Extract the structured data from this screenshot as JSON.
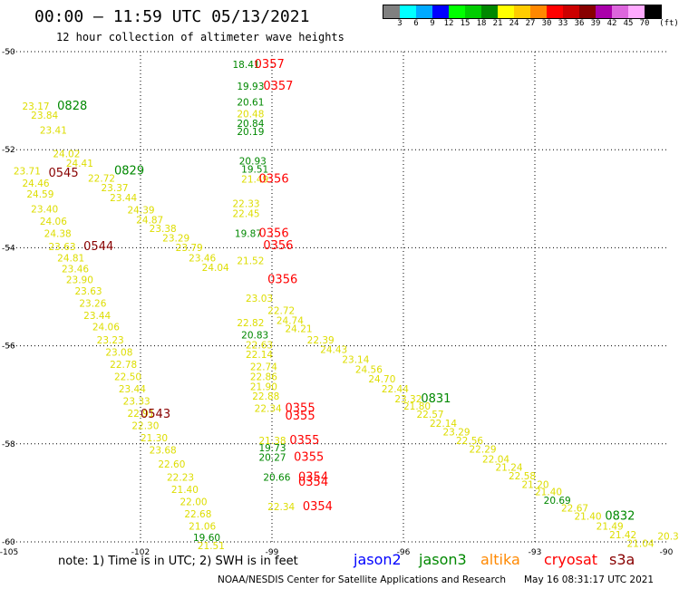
{
  "header": {
    "title": "00:00 – 11:59 UTC 05/13/2021",
    "subtitle": "12 hour collection of altimeter wave heights"
  },
  "colorbar": {
    "unit_label": "(ft)",
    "labels": [
      "3",
      "6",
      "9",
      "12",
      "15",
      "18",
      "21",
      "24",
      "27",
      "30",
      "33",
      "36",
      "39",
      "42",
      "45",
      "70"
    ],
    "colors": [
      "#808080",
      "#00ffff",
      "#00aaff",
      "#0000ff",
      "#00ff00",
      "#00cc00",
      "#008800",
      "#ffff00",
      "#ffcc00",
      "#ff8800",
      "#ff0000",
      "#cc0000",
      "#880000",
      "#aa00aa",
      "#dd66dd",
      "#ffaaff",
      "#000000"
    ]
  },
  "footer": {
    "note": "note:  1) Time is in UTC;  2) SWH is in feet",
    "missions": [
      {
        "name": "jason2",
        "color": "#0000ff"
      },
      {
        "name": "jason3",
        "color": "#008800"
      },
      {
        "name": "altika",
        "color": "#ff8800"
      },
      {
        "name": "cryosat",
        "color": "#ff0000"
      },
      {
        "name": "s3a",
        "color": "#880000"
      }
    ],
    "credit": "NOAA/NESDIS Center for Satellite Applications and Research",
    "timestamp": "May 16 08:31:17 UTC 2021"
  },
  "chart_data": {
    "type": "scatter",
    "title": "00:00 – 11:59 UTC 05/13/2021",
    "subtitle": "12 hour collection of altimeter wave heights",
    "xlabel": "",
    "ylabel": "",
    "xlim": [
      -105,
      -90
    ],
    "ylim": [
      -60,
      -50
    ],
    "x_ticks": [
      -105,
      -102,
      -99,
      -96,
      -93,
      -90
    ],
    "y_ticks": [
      -50,
      -52,
      -54,
      -56,
      -58,
      -60
    ],
    "grid": true,
    "units": "ft",
    "labels": [
      {
        "text": "18.41",
        "lon": -99.9,
        "lat": -50.33,
        "color": "#008800"
      },
      {
        "text": "0357",
        "lon": -99.4,
        "lat": -50.33,
        "color": "#ff0000"
      },
      {
        "text": "19.93",
        "lon": -99.8,
        "lat": -50.78,
        "color": "#008800"
      },
      {
        "text": "0357",
        "lon": -99.2,
        "lat": -50.78,
        "color": "#ff0000"
      },
      {
        "text": "20.61",
        "lon": -99.8,
        "lat": -51.1,
        "color": "#008800"
      },
      {
        "text": "20.48",
        "lon": -99.8,
        "lat": -51.34,
        "color": "#dddd00"
      },
      {
        "text": "20.84",
        "lon": -99.8,
        "lat": -51.53,
        "color": "#008800"
      },
      {
        "text": "20.19",
        "lon": -99.8,
        "lat": -51.7,
        "color": "#008800"
      },
      {
        "text": "20.93",
        "lon": -99.75,
        "lat": -52.3,
        "color": "#008800"
      },
      {
        "text": "19.51",
        "lon": -99.7,
        "lat": -52.47,
        "color": "#008800"
      },
      {
        "text": "21.49",
        "lon": -99.7,
        "lat": -52.67,
        "color": "#dddd00"
      },
      {
        "text": "0356",
        "lon": -99.3,
        "lat": -52.67,
        "color": "#ff0000"
      },
      {
        "text": "23.17",
        "lon": -104.7,
        "lat": -51.18,
        "color": "#dddd00"
      },
      {
        "text": "23.84",
        "lon": -104.5,
        "lat": -51.37,
        "color": "#dddd00"
      },
      {
        "text": "23.41",
        "lon": -104.3,
        "lat": -51.67,
        "color": "#dddd00"
      },
      {
        "text": "24.02",
        "lon": -104.0,
        "lat": -52.15,
        "color": "#dddd00"
      },
      {
        "text": "24.41",
        "lon": -103.7,
        "lat": -52.35,
        "color": "#dddd00"
      },
      {
        "text": "23.71",
        "lon": -104.9,
        "lat": -52.5,
        "color": "#dddd00"
      },
      {
        "text": "24.46",
        "lon": -104.7,
        "lat": -52.75,
        "color": "#dddd00"
      },
      {
        "text": "24.59",
        "lon": -104.6,
        "lat": -52.98,
        "color": "#dddd00"
      },
      {
        "text": "23.40",
        "lon": -104.5,
        "lat": -53.28,
        "color": "#dddd00"
      },
      {
        "text": "24.06",
        "lon": -104.3,
        "lat": -53.53,
        "color": "#dddd00"
      },
      {
        "text": "24.38",
        "lon": -104.2,
        "lat": -53.78,
        "color": "#dddd00"
      },
      {
        "text": "23.63",
        "lon": -104.1,
        "lat": -54.05,
        "color": "#dddd00"
      },
      {
        "text": "24.81",
        "lon": -103.9,
        "lat": -54.28,
        "color": "#dddd00"
      },
      {
        "text": "23.46",
        "lon": -103.8,
        "lat": -54.5,
        "color": "#dddd00"
      },
      {
        "text": "23.90",
        "lon": -103.7,
        "lat": -54.72,
        "color": "#dddd00"
      },
      {
        "text": "23.63",
        "lon": -103.5,
        "lat": -54.95,
        "color": "#dddd00"
      },
      {
        "text": "23.26",
        "lon": -103.4,
        "lat": -55.2,
        "color": "#dddd00"
      },
      {
        "text": "23.44",
        "lon": -103.3,
        "lat": -55.45,
        "color": "#dddd00"
      },
      {
        "text": "24.06",
        "lon": -103.1,
        "lat": -55.68,
        "color": "#dddd00"
      },
      {
        "text": "23.23",
        "lon": -103.0,
        "lat": -55.95,
        "color": "#dddd00"
      },
      {
        "text": "23.08",
        "lon": -102.8,
        "lat": -56.2,
        "color": "#dddd00"
      },
      {
        "text": "22.78",
        "lon": -102.7,
        "lat": -56.45,
        "color": "#dddd00"
      },
      {
        "text": "22.50",
        "lon": -102.6,
        "lat": -56.7,
        "color": "#dddd00"
      },
      {
        "text": "23.44",
        "lon": -102.5,
        "lat": -56.95,
        "color": "#dddd00"
      },
      {
        "text": "23.33",
        "lon": -102.4,
        "lat": -57.2,
        "color": "#dddd00"
      },
      {
        "text": "22.91",
        "lon": -102.3,
        "lat": -57.45,
        "color": "#dddd00"
      },
      {
        "text": "22.30",
        "lon": -102.2,
        "lat": -57.7,
        "color": "#dddd00"
      },
      {
        "text": "21.30",
        "lon": -102.0,
        "lat": -57.95,
        "color": "#dddd00"
      },
      {
        "text": "23.68",
        "lon": -101.8,
        "lat": -58.2,
        "color": "#dddd00"
      },
      {
        "text": "22.60",
        "lon": -101.6,
        "lat": -58.48,
        "color": "#dddd00"
      },
      {
        "text": "22.23",
        "lon": -101.4,
        "lat": -58.75,
        "color": "#dddd00"
      },
      {
        "text": "21.40",
        "lon": -101.3,
        "lat": -59.0,
        "color": "#dddd00"
      },
      {
        "text": "22.00",
        "lon": -101.1,
        "lat": -59.25,
        "color": "#dddd00"
      },
      {
        "text": "22.68",
        "lon": -101.0,
        "lat": -59.5,
        "color": "#dddd00"
      },
      {
        "text": "21.06",
        "lon": -100.9,
        "lat": -59.75,
        "color": "#dddd00"
      },
      {
        "text": "19.60",
        "lon": -100.8,
        "lat": -59.98,
        "color": "#008800"
      },
      {
        "text": "21.51",
        "lon": -100.7,
        "lat": -60.15,
        "color": "#dddd00"
      },
      {
        "text": "0543",
        "lon": -102.0,
        "lat": -57.47,
        "color": "#880000"
      },
      {
        "text": "0544",
        "lon": -103.3,
        "lat": -54.05,
        "color": "#880000"
      },
      {
        "text": "0545",
        "lon": -104.1,
        "lat": -52.55,
        "color": "#880000"
      },
      {
        "text": "0828",
        "lon": -103.9,
        "lat": -51.18,
        "color": "#008800"
      },
      {
        "text": "0829",
        "lon": -102.6,
        "lat": -52.5,
        "color": "#008800"
      },
      {
        "text": "22.72",
        "lon": -103.2,
        "lat": -52.65,
        "color": "#dddd00"
      },
      {
        "text": "23.37",
        "lon": -102.9,
        "lat": -52.85,
        "color": "#dddd00"
      },
      {
        "text": "23.44",
        "lon": -102.7,
        "lat": -53.05,
        "color": "#dddd00"
      },
      {
        "text": "24.39",
        "lon": -102.3,
        "lat": -53.3,
        "color": "#dddd00"
      },
      {
        "text": "24.87",
        "lon": -102.1,
        "lat": -53.5,
        "color": "#dddd00"
      },
      {
        "text": "23.38",
        "lon": -101.8,
        "lat": -53.68,
        "color": "#dddd00"
      },
      {
        "text": "23.29",
        "lon": -101.5,
        "lat": -53.87,
        "color": "#dddd00"
      },
      {
        "text": "23.79",
        "lon": -101.2,
        "lat": -54.07,
        "color": "#dddd00"
      },
      {
        "text": "23.46",
        "lon": -100.9,
        "lat": -54.28,
        "color": "#dddd00"
      },
      {
        "text": "24.04",
        "lon": -100.6,
        "lat": -54.47,
        "color": "#dddd00"
      },
      {
        "text": "22.33",
        "lon": -99.9,
        "lat": -53.17,
        "color": "#dddd00"
      },
      {
        "text": "22.45",
        "lon": -99.9,
        "lat": -53.37,
        "color": "#dddd00"
      },
      {
        "text": "19.87",
        "lon": -99.85,
        "lat": -53.78,
        "color": "#008800"
      },
      {
        "text": "0356",
        "lon": -99.3,
        "lat": -53.78,
        "color": "#ff0000"
      },
      {
        "text": "0356",
        "lon": -99.2,
        "lat": -54.03,
        "color": "#ff0000"
      },
      {
        "text": "21.52",
        "lon": -99.8,
        "lat": -54.33,
        "color": "#dddd00"
      },
      {
        "text": "0356",
        "lon": -99.1,
        "lat": -54.72,
        "color": "#ff0000"
      },
      {
        "text": "0831",
        "lon": -95.6,
        "lat": -57.15,
        "color": "#008800"
      },
      {
        "text": "0832",
        "lon": -91.4,
        "lat": -59.55,
        "color": "#008800"
      },
      {
        "text": "23.03",
        "lon": -99.6,
        "lat": -55.1,
        "color": "#dddd00"
      },
      {
        "text": "22.72",
        "lon": -99.1,
        "lat": -55.35,
        "color": "#dddd00"
      },
      {
        "text": "24.74",
        "lon": -98.9,
        "lat": -55.55,
        "color": "#dddd00"
      },
      {
        "text": "24.21",
        "lon": -98.7,
        "lat": -55.72,
        "color": "#dddd00"
      },
      {
        "text": "22.39",
        "lon": -98.2,
        "lat": -55.95,
        "color": "#dddd00"
      },
      {
        "text": "24.43",
        "lon": -97.9,
        "lat": -56.15,
        "color": "#dddd00"
      },
      {
        "text": "23.14",
        "lon": -97.4,
        "lat": -56.35,
        "color": "#dddd00"
      },
      {
        "text": "24.56",
        "lon": -97.1,
        "lat": -56.55,
        "color": "#dddd00"
      },
      {
        "text": "24.70",
        "lon": -96.8,
        "lat": -56.75,
        "color": "#dddd00"
      },
      {
        "text": "22.44",
        "lon": -96.5,
        "lat": -56.95,
        "color": "#dddd00"
      },
      {
        "text": "23.32",
        "lon": -96.2,
        "lat": -57.15,
        "color": "#dddd00"
      },
      {
        "text": "21.80",
        "lon": -96.0,
        "lat": -57.3,
        "color": "#dddd00"
      },
      {
        "text": "22.57",
        "lon": -95.7,
        "lat": -57.47,
        "color": "#dddd00"
      },
      {
        "text": "22.14",
        "lon": -95.4,
        "lat": -57.65,
        "color": "#dddd00"
      },
      {
        "text": "23.29",
        "lon": -95.1,
        "lat": -57.83,
        "color": "#dddd00"
      },
      {
        "text": "22.56",
        "lon": -94.8,
        "lat": -58.0,
        "color": "#dddd00"
      },
      {
        "text": "22.29",
        "lon": -94.5,
        "lat": -58.18,
        "color": "#dddd00"
      },
      {
        "text": "22.04",
        "lon": -94.2,
        "lat": -58.38,
        "color": "#dddd00"
      },
      {
        "text": "21.24",
        "lon": -93.9,
        "lat": -58.55,
        "color": "#dddd00"
      },
      {
        "text": "22.58",
        "lon": -93.6,
        "lat": -58.72,
        "color": "#dddd00"
      },
      {
        "text": "21.20",
        "lon": -93.3,
        "lat": -58.9,
        "color": "#dddd00"
      },
      {
        "text": "21.40",
        "lon": -93.0,
        "lat": -59.05,
        "color": "#dddd00"
      },
      {
        "text": "20.69",
        "lon": -92.8,
        "lat": -59.22,
        "color": "#008800"
      },
      {
        "text": "22.67",
        "lon": -92.4,
        "lat": -59.38,
        "color": "#dddd00"
      },
      {
        "text": "21.40",
        "lon": -92.1,
        "lat": -59.55,
        "color": "#dddd00"
      },
      {
        "text": "21.49",
        "lon": -91.6,
        "lat": -59.75,
        "color": "#dddd00"
      },
      {
        "text": "21.42",
        "lon": -91.3,
        "lat": -59.93,
        "color": "#dddd00"
      },
      {
        "text": "21.04",
        "lon": -90.9,
        "lat": -60.1,
        "color": "#dddd00"
      },
      {
        "text": "20.3",
        "lon": -90.2,
        "lat": -59.95,
        "color": "#dddd00"
      },
      {
        "text": "22.82",
        "lon": -99.8,
        "lat": -55.6,
        "color": "#dddd00"
      },
      {
        "text": "20.83",
        "lon": -99.7,
        "lat": -55.85,
        "color": "#008800"
      },
      {
        "text": "22.63",
        "lon": -99.6,
        "lat": -56.05,
        "color": "#dddd00"
      },
      {
        "text": "22.14",
        "lon": -99.6,
        "lat": -56.25,
        "color": "#dddd00"
      },
      {
        "text": "22.74",
        "lon": -99.5,
        "lat": -56.5,
        "color": "#dddd00"
      },
      {
        "text": "22.86",
        "lon": -99.5,
        "lat": -56.7,
        "color": "#dddd00"
      },
      {
        "text": "21.90",
        "lon": -99.5,
        "lat": -56.9,
        "color": "#dddd00"
      },
      {
        "text": "22.88",
        "lon": -99.45,
        "lat": -57.1,
        "color": "#dddd00"
      },
      {
        "text": "22.34",
        "lon": -99.4,
        "lat": -57.35,
        "color": "#dddd00"
      },
      {
        "text": "0355",
        "lon": -98.7,
        "lat": -57.35,
        "color": "#ff0000"
      },
      {
        "text": "0355",
        "lon": -98.7,
        "lat": -57.5,
        "color": "#ff0000"
      },
      {
        "text": "21.38",
        "lon": -99.3,
        "lat": -58.0,
        "color": "#dddd00"
      },
      {
        "text": "0355",
        "lon": -98.6,
        "lat": -58.0,
        "color": "#ff0000"
      },
      {
        "text": "19.73",
        "lon": -99.3,
        "lat": -58.15,
        "color": "#008800"
      },
      {
        "text": "20.27",
        "lon": -99.3,
        "lat": -58.35,
        "color": "#008800"
      },
      {
        "text": "0355",
        "lon": -98.5,
        "lat": -58.35,
        "color": "#ff0000"
      },
      {
        "text": "20.66",
        "lon": -99.2,
        "lat": -58.75,
        "color": "#008800"
      },
      {
        "text": "0354",
        "lon": -98.4,
        "lat": -58.75,
        "color": "#ff0000"
      },
      {
        "text": "0354",
        "lon": -98.4,
        "lat": -58.85,
        "color": "#ff0000"
      },
      {
        "text": "22.34",
        "lon": -99.1,
        "lat": -59.35,
        "color": "#dddd00"
      },
      {
        "text": "0354",
        "lon": -98.3,
        "lat": -59.35,
        "color": "#ff0000"
      }
    ]
  }
}
